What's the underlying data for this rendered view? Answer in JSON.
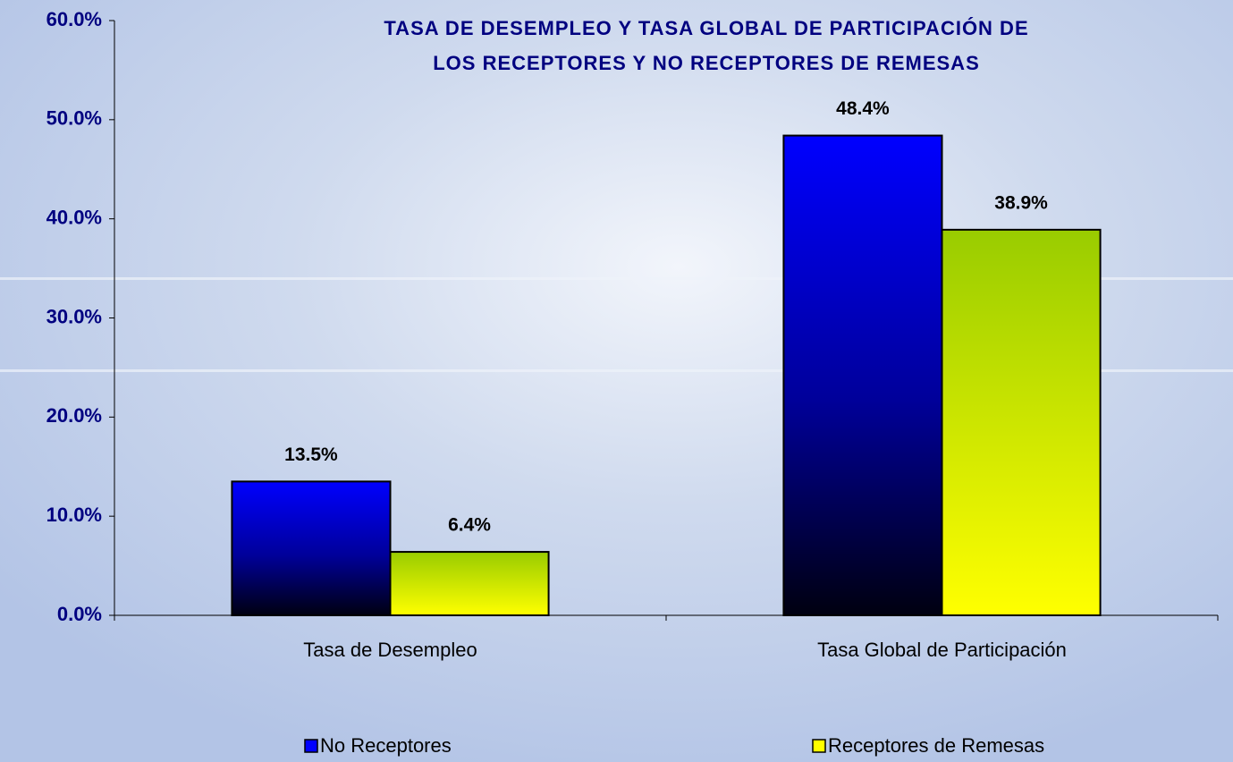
{
  "chart_data": {
    "type": "bar",
    "title": [
      "TASA DE DESEMPLEO Y TASA GLOBAL DE PARTICIPACIÓN  DE",
      "LOS RECEPTORES  Y NO RECEPTORES DE REMESAS"
    ],
    "categories": [
      "Tasa de Desempleo",
      "Tasa Global de Participación"
    ],
    "series": [
      {
        "name": "No Receptores",
        "color": "#0000ff",
        "values": [
          13.5,
          48.4
        ],
        "value_labels": [
          "13.5%",
          "48.4%"
        ]
      },
      {
        "name": "Receptores de Remesas",
        "color": "#ffff00",
        "values": [
          6.4,
          38.9
        ],
        "value_labels": [
          "6.4%",
          "38.9%"
        ]
      }
    ],
    "ylim": [
      0,
      60
    ],
    "yticks": [
      {
        "value": 0,
        "label": "0.0%"
      },
      {
        "value": 10,
        "label": "10.0%"
      },
      {
        "value": 20,
        "label": "20.0%"
      },
      {
        "value": 30,
        "label": "30.0%"
      },
      {
        "value": 40,
        "label": "40.0%"
      },
      {
        "value": 50,
        "label": "50.0%"
      },
      {
        "value": 60,
        "label": "60.0%"
      }
    ],
    "grid": false
  }
}
